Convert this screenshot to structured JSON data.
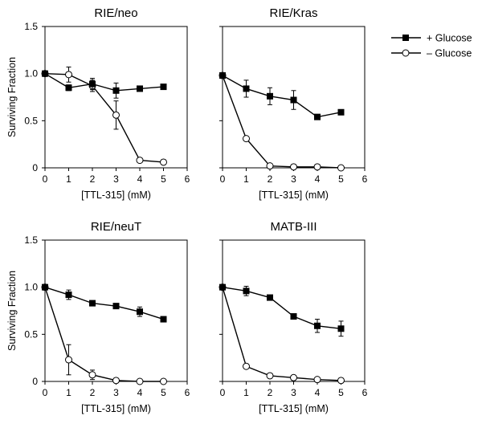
{
  "legend": {
    "items": [
      {
        "label": "+ Glucose",
        "marker": "filled-square"
      },
      {
        "label": "– Glucose",
        "marker": "open-circle"
      }
    ]
  },
  "chart_data": [
    {
      "type": "line",
      "title": "RIE/neo",
      "xlabel": "[TTL-315] (mM)",
      "ylabel": "Surviving Fraction",
      "xlim": [
        0,
        6
      ],
      "ylim": [
        0,
        1.5
      ],
      "xticks": [
        "0",
        "1",
        "2",
        "3",
        "4",
        "5",
        "6"
      ],
      "yticks": [
        "0",
        "0.5",
        "1.0",
        "1.5"
      ],
      "show_ytick_labels": true,
      "show_ylabel": true,
      "grid": false,
      "series": [
        {
          "name": "+ Glucose",
          "marker": "filled-square",
          "x": [
            0,
            1,
            2,
            3,
            4,
            5
          ],
          "y": [
            1.0,
            0.85,
            0.89,
            0.82,
            0.84,
            0.86
          ],
          "err": [
            0.0,
            0.03,
            0.06,
            0.08,
            0.02,
            0.0
          ]
        },
        {
          "name": "– Glucose",
          "marker": "open-circle",
          "x": [
            0,
            1,
            2,
            3,
            4,
            5
          ],
          "y": [
            1.0,
            0.99,
            0.87,
            0.56,
            0.08,
            0.06
          ],
          "err": [
            0.0,
            0.08,
            0.06,
            0.15,
            0.0,
            0.0
          ]
        }
      ]
    },
    {
      "type": "line",
      "title": "RIE/Kras",
      "xlabel": "[TTL-315] (mM)",
      "ylabel": "",
      "xlim": [
        0,
        6
      ],
      "ylim": [
        0,
        1.5
      ],
      "xticks": [
        "0",
        "1",
        "2",
        "3",
        "4",
        "5",
        "6"
      ],
      "yticks": [
        "0",
        "0.5",
        "1.0",
        "1.5"
      ],
      "show_ytick_labels": false,
      "show_ylabel": false,
      "grid": false,
      "series": [
        {
          "name": "+ Glucose",
          "marker": "filled-square",
          "x": [
            0,
            1,
            2,
            3,
            4,
            5
          ],
          "y": [
            0.98,
            0.84,
            0.76,
            0.72,
            0.54,
            0.59
          ],
          "err": [
            0.0,
            0.09,
            0.09,
            0.1,
            0.0,
            0.0
          ]
        },
        {
          "name": "– Glucose",
          "marker": "open-circle",
          "x": [
            0,
            1,
            2,
            3,
            4,
            5
          ],
          "y": [
            0.98,
            0.31,
            0.02,
            0.01,
            0.01,
            0.0
          ],
          "err": [
            0.0,
            0.0,
            0.0,
            0.0,
            0.0,
            0.0
          ]
        }
      ]
    },
    {
      "type": "line",
      "title": "RIE/neuT",
      "xlabel": "[TTL-315] (mM)",
      "ylabel": "Surviving Fraction",
      "xlim": [
        0,
        6
      ],
      "ylim": [
        0,
        1.5
      ],
      "xticks": [
        "0",
        "1",
        "2",
        "3",
        "4",
        "5",
        "6"
      ],
      "yticks": [
        "0",
        "0.5",
        "1.0",
        "1.5"
      ],
      "show_ytick_labels": true,
      "show_ylabel": true,
      "grid": false,
      "series": [
        {
          "name": "+ Glucose",
          "marker": "filled-square",
          "x": [
            0,
            1,
            2,
            3,
            4,
            5
          ],
          "y": [
            1.0,
            0.92,
            0.83,
            0.8,
            0.74,
            0.66
          ],
          "err": [
            0.0,
            0.05,
            0.0,
            0.0,
            0.05,
            0.0
          ]
        },
        {
          "name": "– Glucose",
          "marker": "open-circle",
          "x": [
            0,
            1,
            2,
            3,
            4,
            5
          ],
          "y": [
            1.0,
            0.23,
            0.07,
            0.01,
            0.0,
            0.0
          ],
          "err": [
            0.0,
            0.16,
            0.05,
            0.0,
            0.0,
            0.0
          ]
        }
      ]
    },
    {
      "type": "line",
      "title": "MATB-III",
      "xlabel": "[TTL-315] (mM)",
      "ylabel": "",
      "xlim": [
        0,
        6
      ],
      "ylim": [
        0,
        1.5
      ],
      "xticks": [
        "0",
        "1",
        "2",
        "3",
        "4",
        "5",
        "6"
      ],
      "yticks": [
        "0",
        "0.5",
        "1.0",
        "1.5"
      ],
      "show_ytick_labels": false,
      "show_ylabel": false,
      "grid": false,
      "series": [
        {
          "name": "+ Glucose",
          "marker": "filled-square",
          "x": [
            0,
            1,
            2,
            3,
            4,
            5
          ],
          "y": [
            1.0,
            0.96,
            0.89,
            0.69,
            0.59,
            0.56
          ],
          "err": [
            0.0,
            0.05,
            0.0,
            0.0,
            0.07,
            0.08
          ]
        },
        {
          "name": "– Glucose",
          "marker": "open-circle",
          "x": [
            0,
            1,
            2,
            3,
            4,
            5
          ],
          "y": [
            1.0,
            0.16,
            0.06,
            0.04,
            0.02,
            0.01
          ],
          "err": [
            0.0,
            0.0,
            0.0,
            0.0,
            0.0,
            0.0
          ]
        }
      ]
    }
  ]
}
